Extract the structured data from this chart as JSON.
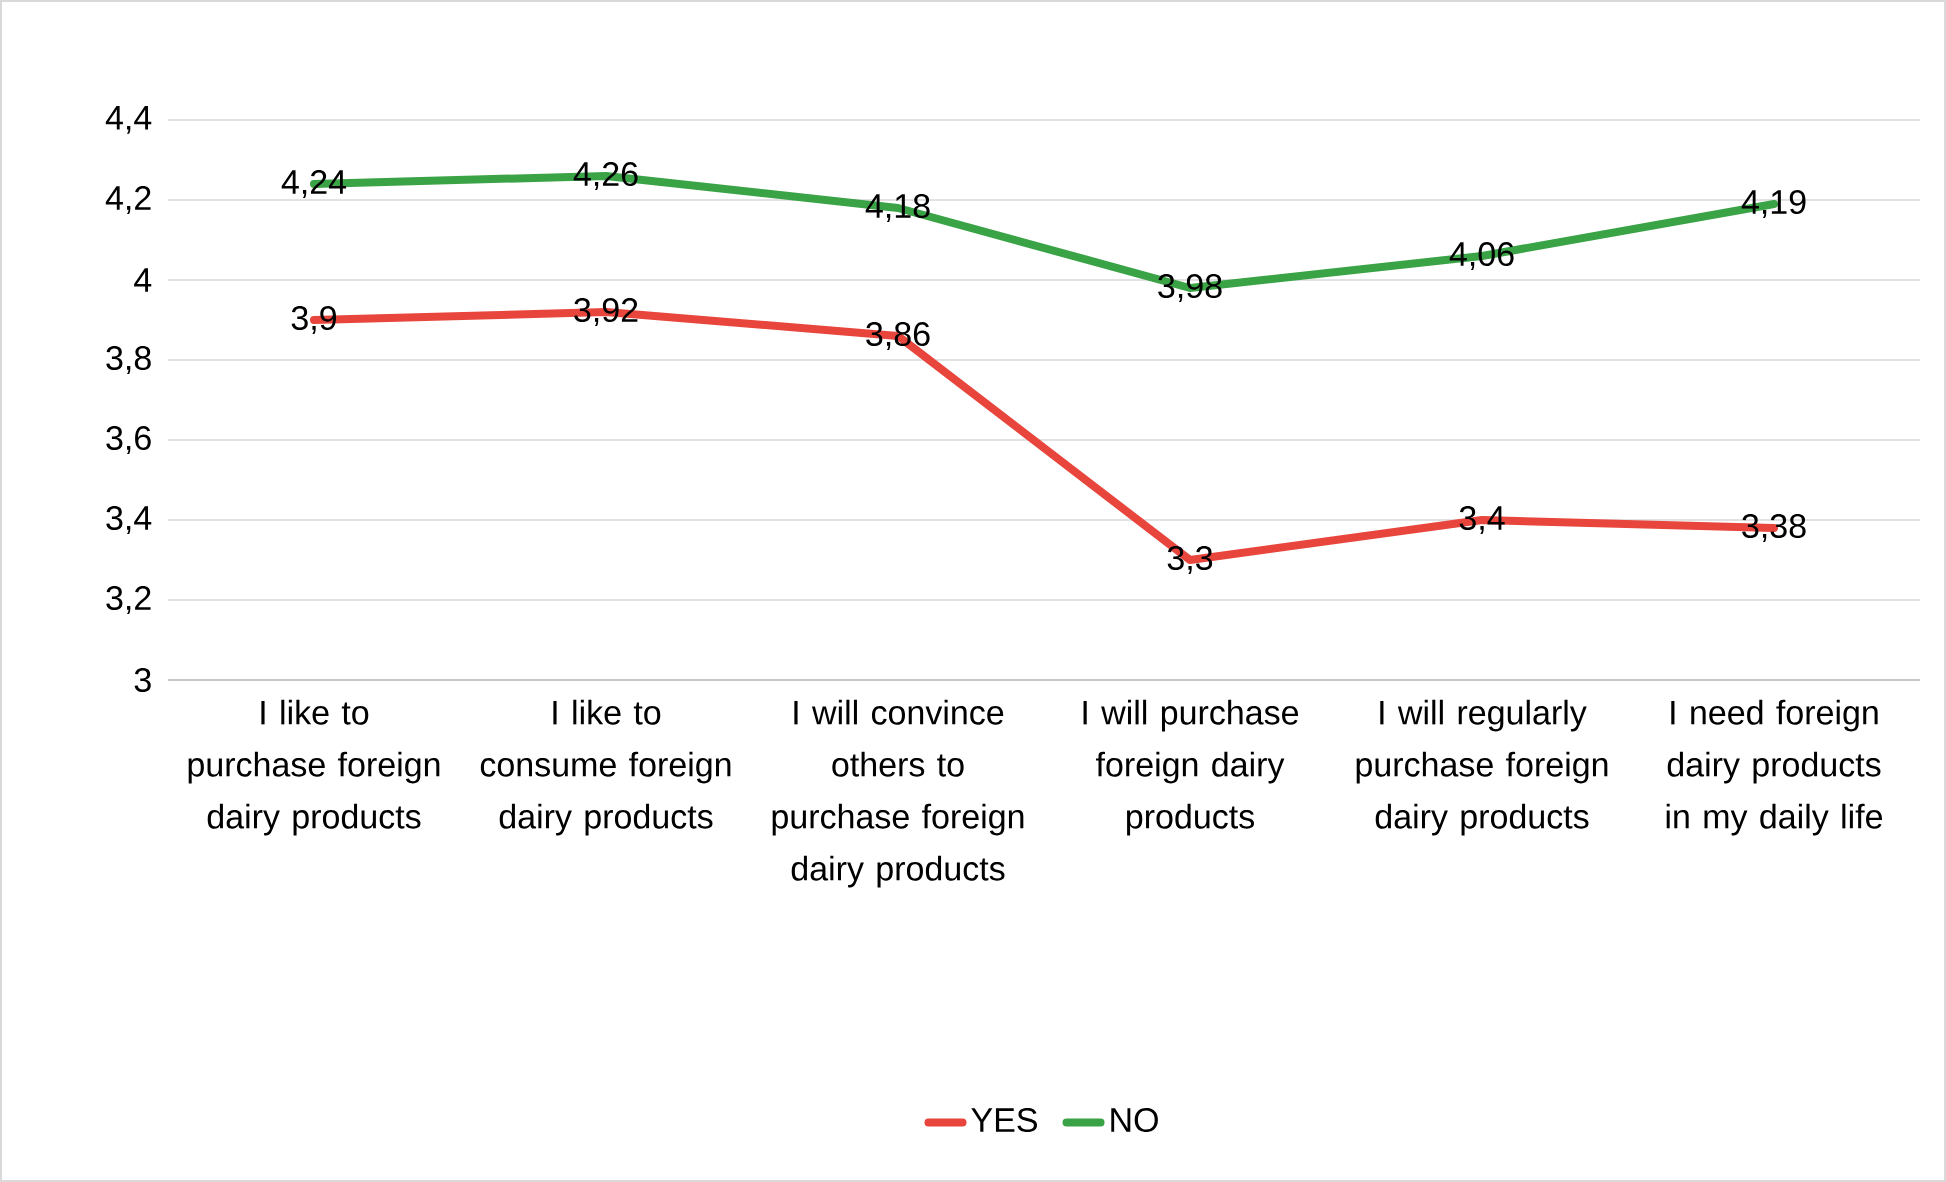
{
  "chart_data": {
    "type": "line",
    "categories": [
      "I like to purchase foreign dairy products",
      "I like to consume foreign dairy products",
      "I will convince others to purchase foreign dairy products",
      "I will purchase foreign dairy products",
      "I will regularly purchase foreign dairy products",
      "I need foreign dairy products in my daily life"
    ],
    "series": [
      {
        "name": "YES",
        "color": "#e8453c",
        "values": [
          3.9,
          3.92,
          3.86,
          3.3,
          3.4,
          3.38
        ],
        "value_labels": [
          "3,9",
          "3,92",
          "3,86",
          "3,3",
          "3,4",
          "3,38"
        ]
      },
      {
        "name": "NO",
        "color": "#3aa346",
        "values": [
          4.24,
          4.26,
          4.18,
          3.98,
          4.06,
          4.19
        ],
        "value_labels": [
          "4,24",
          "4,26",
          "4,18",
          "3,98",
          "4,06",
          "4,19"
        ]
      }
    ],
    "ylim": [
      3,
      4.4
    ],
    "yticks": [
      3,
      {
        "value": 3.2,
        "label": "3,2"
      },
      {
        "value": 3.4,
        "label": "3,4"
      },
      {
        "value": 3.6,
        "label": "3,6"
      },
      {
        "value": 3.8,
        "label": "3,8"
      },
      4,
      {
        "value": 4.2,
        "label": "4,2"
      },
      {
        "value": 4.4,
        "label": "4,4"
      }
    ],
    "grid": "y",
    "legend": "bottom",
    "marker": "none",
    "line_style": "solid"
  }
}
